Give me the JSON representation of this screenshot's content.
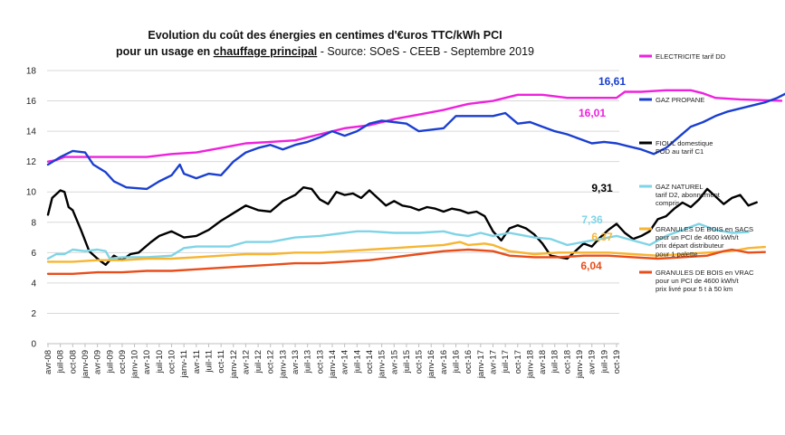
{
  "chart_data": {
    "type": "line",
    "title_line1": "Evolution du coût des énergies en centimes d'€uros TTC/kWh PCI",
    "title_line2_prefix": "pour un usage en ",
    "title_line2_underlined": "chauffage principal",
    "title_line2_suffix": "- Source: SOeS - CEEB - Septembre 2019",
    "xlabel": "",
    "ylabel": "",
    "ylim": [
      0,
      18
    ],
    "yticks": [
      0,
      2,
      4,
      6,
      8,
      10,
      12,
      14,
      16,
      18
    ],
    "x_tick_labels": [
      "avr-08",
      "juil-08",
      "oct-08",
      "janv-09",
      "avr-09",
      "juil-09",
      "oct-09",
      "janv-10",
      "avr-10",
      "juil-10",
      "oct-10",
      "janv-11",
      "avr-11",
      "juil-11",
      "oct-11",
      "janv-12",
      "avr-12",
      "juil-12",
      "oct-12",
      "janv-13",
      "avr-13",
      "juil-13",
      "oct-13",
      "janv-14",
      "avr-14",
      "juil-14",
      "oct-14",
      "janv-15",
      "avr-15",
      "juil-15",
      "oct-15",
      "janv-16",
      "avr-16",
      "juil-16",
      "oct-16",
      "janv-17",
      "avr-17",
      "juil-17",
      "oct-17",
      "janv-18",
      "avr-18",
      "juil-18",
      "oct-18",
      "janv-19",
      "avr-19",
      "juil-19",
      "oct-19"
    ],
    "grid": "horizontal",
    "legend_position": "right",
    "series": [
      {
        "name": "ELECTRICITE tarif DD",
        "legend_lines": [
          "ELECTRICITE tarif DD"
        ],
        "color": "#ee22dd",
        "end_label": "16,01",
        "points": [
          [
            0,
            12
          ],
          [
            2,
            12.1
          ],
          [
            4,
            12.3
          ],
          [
            12,
            12.3
          ],
          [
            24,
            12.3
          ],
          [
            30,
            12.5
          ],
          [
            36,
            12.6
          ],
          [
            42,
            12.9
          ],
          [
            48,
            13.2
          ],
          [
            54,
            13.3
          ],
          [
            60,
            13.4
          ],
          [
            66,
            13.8
          ],
          [
            72,
            14.2
          ],
          [
            78,
            14.4
          ],
          [
            84,
            14.8
          ],
          [
            90,
            15.1
          ],
          [
            96,
            15.4
          ],
          [
            102,
            15.8
          ],
          [
            108,
            16.0
          ],
          [
            114,
            16.4
          ],
          [
            120,
            16.4
          ],
          [
            126,
            16.2
          ],
          [
            132,
            16.2
          ],
          [
            138,
            16.2
          ],
          [
            140,
            16.6
          ],
          [
            144,
            16.6
          ],
          [
            150,
            16.7
          ],
          [
            156,
            16.7
          ],
          [
            159,
            16.5
          ],
          [
            162,
            16.2
          ],
          [
            168,
            16.1
          ],
          [
            178,
            16.01
          ]
        ]
      },
      {
        "name": "GAZ PROPANE",
        "legend_lines": [
          "GAZ PROPANE"
        ],
        "color": "#1a3fd0",
        "end_label": "16,61",
        "points": [
          [
            0,
            11.8
          ],
          [
            3,
            12.3
          ],
          [
            6,
            12.7
          ],
          [
            9,
            12.6
          ],
          [
            11,
            11.8
          ],
          [
            14,
            11.3
          ],
          [
            16,
            10.7
          ],
          [
            19,
            10.3
          ],
          [
            24,
            10.2
          ],
          [
            27,
            10.7
          ],
          [
            30,
            11.1
          ],
          [
            32,
            11.8
          ],
          [
            33,
            11.2
          ],
          [
            36,
            10.9
          ],
          [
            39,
            11.2
          ],
          [
            42,
            11.1
          ],
          [
            45,
            12.0
          ],
          [
            48,
            12.6
          ],
          [
            51,
            12.9
          ],
          [
            54,
            13.1
          ],
          [
            57,
            12.8
          ],
          [
            60,
            13.1
          ],
          [
            63,
            13.3
          ],
          [
            66,
            13.6
          ],
          [
            69,
            14.0
          ],
          [
            72,
            13.7
          ],
          [
            75,
            14.0
          ],
          [
            78,
            14.5
          ],
          [
            81,
            14.7
          ],
          [
            84,
            14.6
          ],
          [
            87,
            14.5
          ],
          [
            90,
            14.0
          ],
          [
            93,
            14.1
          ],
          [
            96,
            14.2
          ],
          [
            99,
            15.0
          ],
          [
            102,
            15.0
          ],
          [
            105,
            15.0
          ],
          [
            108,
            15.0
          ],
          [
            111,
            15.2
          ],
          [
            114,
            14.5
          ],
          [
            117,
            14.6
          ],
          [
            120,
            14.3
          ],
          [
            123,
            14.0
          ],
          [
            126,
            13.8
          ],
          [
            129,
            13.5
          ],
          [
            132,
            13.2
          ],
          [
            135,
            13.3
          ],
          [
            138,
            13.2
          ],
          [
            141,
            13.0
          ],
          [
            144,
            12.8
          ],
          [
            147,
            12.5
          ],
          [
            150,
            12.9
          ],
          [
            153,
            13.6
          ],
          [
            156,
            14.3
          ],
          [
            159,
            14.6
          ],
          [
            162,
            15.0
          ],
          [
            165,
            15.3
          ],
          [
            168,
            15.5
          ],
          [
            171,
            15.7
          ],
          [
            174,
            15.9
          ],
          [
            177,
            16.2
          ],
          [
            180,
            16.61
          ]
        ]
      },
      {
        "name": "FIOUL domestique FOD au tarif C1",
        "legend_lines": [
          "FIOUL domestique",
          "FOD au tarif C1"
        ],
        "color": "#000000",
        "end_label": "9,31",
        "points": [
          [
            0,
            8.5
          ],
          [
            1,
            9.6
          ],
          [
            3,
            10.1
          ],
          [
            4,
            10.0
          ],
          [
            5,
            9.0
          ],
          [
            6,
            8.8
          ],
          [
            8,
            7.5
          ],
          [
            10,
            6.1
          ],
          [
            12,
            5.6
          ],
          [
            14,
            5.2
          ],
          [
            16,
            5.8
          ],
          [
            18,
            5.5
          ],
          [
            20,
            5.9
          ],
          [
            22,
            6.0
          ],
          [
            25,
            6.7
          ],
          [
            27,
            7.1
          ],
          [
            30,
            7.4
          ],
          [
            33,
            7.0
          ],
          [
            36,
            7.1
          ],
          [
            39,
            7.5
          ],
          [
            42,
            8.1
          ],
          [
            45,
            8.6
          ],
          [
            48,
            9.1
          ],
          [
            51,
            8.8
          ],
          [
            54,
            8.7
          ],
          [
            57,
            9.4
          ],
          [
            60,
            9.8
          ],
          [
            62,
            10.3
          ],
          [
            64,
            10.2
          ],
          [
            66,
            9.5
          ],
          [
            68,
            9.2
          ],
          [
            70,
            10.0
          ],
          [
            72,
            9.8
          ],
          [
            74,
            9.9
          ],
          [
            76,
            9.6
          ],
          [
            78,
            10.1
          ],
          [
            80,
            9.6
          ],
          [
            82,
            9.1
          ],
          [
            84,
            9.4
          ],
          [
            86,
            9.1
          ],
          [
            88,
            9.0
          ],
          [
            90,
            8.8
          ],
          [
            92,
            9.0
          ],
          [
            94,
            8.9
          ],
          [
            96,
            8.7
          ],
          [
            98,
            8.9
          ],
          [
            100,
            8.8
          ],
          [
            102,
            8.6
          ],
          [
            104,
            8.7
          ],
          [
            106,
            8.4
          ],
          [
            108,
            7.4
          ],
          [
            110,
            6.8
          ],
          [
            112,
            7.6
          ],
          [
            114,
            7.8
          ],
          [
            116,
            7.6
          ],
          [
            118,
            7.2
          ],
          [
            120,
            6.6
          ],
          [
            122,
            5.8
          ],
          [
            124,
            5.7
          ],
          [
            126,
            5.6
          ],
          [
            128,
            6.1
          ],
          [
            130,
            6.6
          ],
          [
            132,
            6.4
          ],
          [
            134,
            7.0
          ],
          [
            136,
            7.5
          ],
          [
            138,
            7.9
          ],
          [
            140,
            7.3
          ],
          [
            142,
            6.9
          ],
          [
            144,
            7.1
          ],
          [
            146,
            7.4
          ],
          [
            148,
            8.2
          ],
          [
            150,
            8.4
          ],
          [
            152,
            8.9
          ],
          [
            154,
            9.3
          ],
          [
            156,
            9.0
          ],
          [
            158,
            9.5
          ],
          [
            160,
            10.2
          ],
          [
            162,
            9.7
          ],
          [
            164,
            9.2
          ],
          [
            166,
            9.6
          ],
          [
            168,
            9.8
          ],
          [
            170,
            9.1
          ],
          [
            172,
            9.31
          ]
        ]
      },
      {
        "name": "GAZ NATUREL tarif D2, abonnement compris",
        "legend_lines": [
          "GAZ NATUREL",
          "tarif D2, abonnement",
          "compris"
        ],
        "color": "#7fd4e6",
        "end_label": "7,36",
        "points": [
          [
            0,
            5.6
          ],
          [
            2,
            5.9
          ],
          [
            4,
            5.9
          ],
          [
            6,
            6.2
          ],
          [
            9,
            6.1
          ],
          [
            12,
            6.2
          ],
          [
            14,
            6.1
          ],
          [
            15,
            5.6
          ],
          [
            18,
            5.7
          ],
          [
            24,
            5.7
          ],
          [
            30,
            5.8
          ],
          [
            33,
            6.3
          ],
          [
            36,
            6.4
          ],
          [
            40,
            6.4
          ],
          [
            44,
            6.4
          ],
          [
            48,
            6.7
          ],
          [
            54,
            6.7
          ],
          [
            60,
            7.0
          ],
          [
            66,
            7.1
          ],
          [
            72,
            7.3
          ],
          [
            75,
            7.4
          ],
          [
            78,
            7.4
          ],
          [
            84,
            7.3
          ],
          [
            90,
            7.3
          ],
          [
            96,
            7.4
          ],
          [
            99,
            7.2
          ],
          [
            102,
            7.1
          ],
          [
            105,
            7.3
          ],
          [
            108,
            7.1
          ],
          [
            112,
            7.3
          ],
          [
            114,
            7.2
          ],
          [
            118,
            7.0
          ],
          [
            122,
            6.9
          ],
          [
            126,
            6.5
          ],
          [
            130,
            6.7
          ],
          [
            134,
            6.9
          ],
          [
            138,
            7.1
          ],
          [
            142,
            6.8
          ],
          [
            146,
            6.5
          ],
          [
            150,
            7.1
          ],
          [
            154,
            7.5
          ],
          [
            158,
            7.9
          ],
          [
            162,
            7.5
          ],
          [
            166,
            7.3
          ],
          [
            170,
            7.36
          ]
        ]
      },
      {
        "name": "GRANULES DE BOIS en SACS pour un PCI de 4600 kWh/t prix départ distributeur pour 1 palette",
        "legend_lines": [
          "GRANULES DE BOIS en SACS",
          "pour un PCI de 4600 kWh/t",
          "prix départ distributeur",
          "pour 1 palette"
        ],
        "color": "#f7b531",
        "end_label": "6,37",
        "points": [
          [
            0,
            5.4
          ],
          [
            6,
            5.4
          ],
          [
            12,
            5.5
          ],
          [
            18,
            5.5
          ],
          [
            24,
            5.6
          ],
          [
            30,
            5.6
          ],
          [
            36,
            5.7
          ],
          [
            42,
            5.8
          ],
          [
            48,
            5.9
          ],
          [
            54,
            5.9
          ],
          [
            60,
            6.0
          ],
          [
            66,
            6.0
          ],
          [
            72,
            6.1
          ],
          [
            78,
            6.2
          ],
          [
            84,
            6.3
          ],
          [
            90,
            6.4
          ],
          [
            96,
            6.5
          ],
          [
            100,
            6.7
          ],
          [
            102,
            6.5
          ],
          [
            106,
            6.6
          ],
          [
            108,
            6.5
          ],
          [
            112,
            6.1
          ],
          [
            118,
            5.9
          ],
          [
            124,
            6.0
          ],
          [
            130,
            6.0
          ],
          [
            136,
            6.0
          ],
          [
            142,
            5.9
          ],
          [
            148,
            5.8
          ],
          [
            154,
            5.9
          ],
          [
            160,
            6.0
          ],
          [
            166,
            6.1
          ],
          [
            170,
            6.3
          ],
          [
            174,
            6.37
          ]
        ]
      },
      {
        "name": "GRANULES DE BOIS en VRAC pour un PCI de 4600 kWh/t prix livré pour 5 t à 50 km",
        "legend_lines": [
          "GRANULES DE BOIS en VRAC",
          "pour un PCI de 4600 kWh/t",
          "prix livré pour 5 t à 50 km"
        ],
        "color": "#e84e1b",
        "end_label": "6,04",
        "points": [
          [
            0,
            4.6
          ],
          [
            6,
            4.6
          ],
          [
            12,
            4.7
          ],
          [
            18,
            4.7
          ],
          [
            24,
            4.8
          ],
          [
            30,
            4.8
          ],
          [
            36,
            4.9
          ],
          [
            42,
            5.0
          ],
          [
            48,
            5.1
          ],
          [
            54,
            5.2
          ],
          [
            60,
            5.3
          ],
          [
            66,
            5.3
          ],
          [
            72,
            5.4
          ],
          [
            78,
            5.5
          ],
          [
            84,
            5.7
          ],
          [
            90,
            5.9
          ],
          [
            96,
            6.1
          ],
          [
            102,
            6.2
          ],
          [
            108,
            6.1
          ],
          [
            112,
            5.8
          ],
          [
            118,
            5.7
          ],
          [
            124,
            5.7
          ],
          [
            130,
            5.8
          ],
          [
            136,
            5.8
          ],
          [
            142,
            5.7
          ],
          [
            148,
            5.6
          ],
          [
            154,
            5.7
          ],
          [
            160,
            5.8
          ],
          [
            164,
            6.1
          ],
          [
            166,
            6.2
          ],
          [
            170,
            6.0
          ],
          [
            174,
            6.04
          ]
        ]
      }
    ]
  }
}
